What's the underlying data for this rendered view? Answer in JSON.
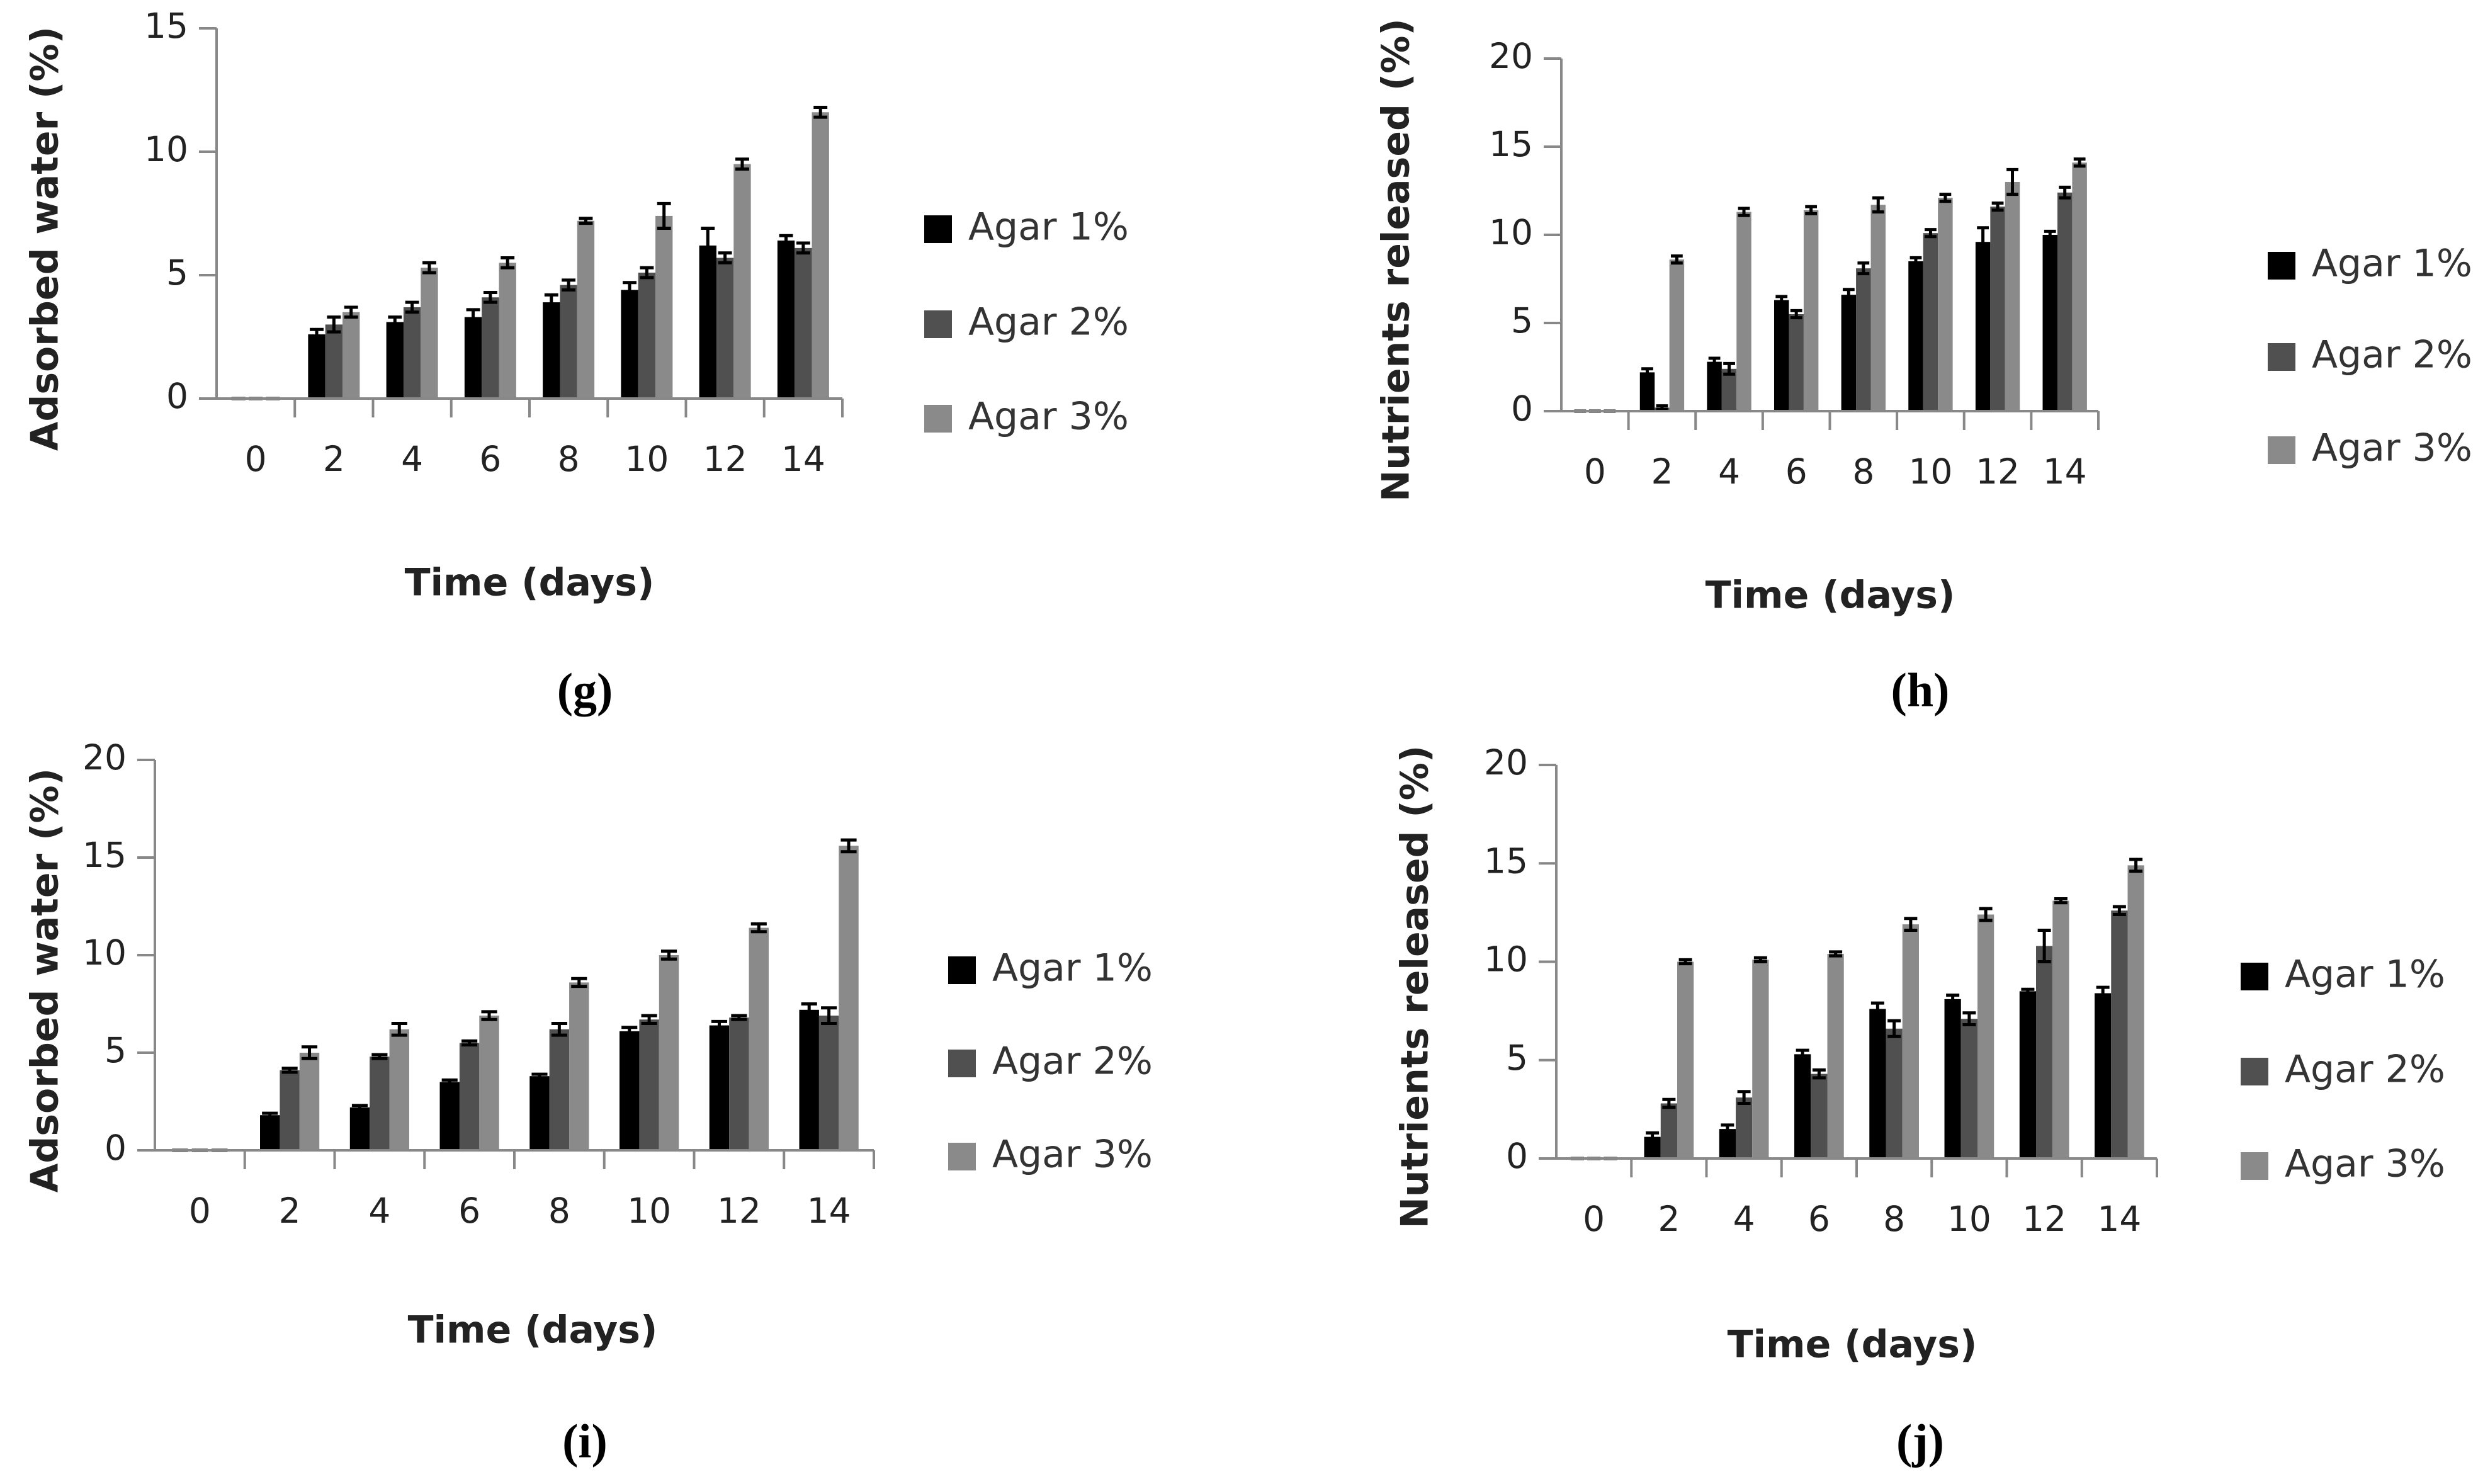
{
  "chart_data": [
    {
      "type": "bar",
      "label": "(g)",
      "x_label": "Time (days)",
      "y_label": "Adsorbed water (%)",
      "categories": [
        "0",
        "2",
        "4",
        "6",
        "8",
        "10",
        "12",
        "14"
      ],
      "ylim": [
        0,
        15
      ],
      "yticks": [
        0,
        5,
        10,
        15
      ],
      "series": [
        {
          "name": "Agar 1%",
          "color": "#000000",
          "values": [
            0,
            2.6,
            3.1,
            3.3,
            3.9,
            4.4,
            6.2,
            6.4
          ],
          "errors": [
            0,
            0.2,
            0.2,
            0.3,
            0.3,
            0.3,
            0.7,
            0.2
          ]
        },
        {
          "name": "Agar 2%",
          "color": "#505050",
          "values": [
            0,
            3.0,
            3.7,
            4.1,
            4.6,
            5.1,
            5.7,
            6.1
          ],
          "errors": [
            0,
            0.3,
            0.2,
            0.2,
            0.2,
            0.2,
            0.2,
            0.2
          ]
        },
        {
          "name": "Agar 3%",
          "color": "#8a8a8a",
          "values": [
            0,
            3.5,
            5.3,
            5.5,
            7.2,
            7.4,
            9.5,
            11.6
          ],
          "errors": [
            0,
            0.2,
            0.2,
            0.2,
            0.1,
            0.5,
            0.2,
            0.2
          ]
        }
      ]
    },
    {
      "type": "bar",
      "label": "(h)",
      "x_label": "Time (days)",
      "y_label": "Nutrients released (%)",
      "categories": [
        "0",
        "2",
        "4",
        "6",
        "8",
        "10",
        "12",
        "14"
      ],
      "ylim": [
        0,
        20
      ],
      "yticks": [
        0,
        5,
        10,
        15,
        20
      ],
      "series": [
        {
          "name": "Agar 1%",
          "color": "#000000",
          "values": [
            0,
            2.2,
            2.8,
            6.3,
            6.6,
            8.5,
            9.6,
            10.0
          ],
          "errors": [
            0,
            0.2,
            0.2,
            0.2,
            0.3,
            0.2,
            0.8,
            0.2
          ]
        },
        {
          "name": "Agar 2%",
          "color": "#505050",
          "values": [
            0,
            0.2,
            2.4,
            5.5,
            8.1,
            10.1,
            11.6,
            12.4
          ],
          "errors": [
            0,
            0.1,
            0.3,
            0.2,
            0.3,
            0.2,
            0.2,
            0.3
          ]
        },
        {
          "name": "Agar 3%",
          "color": "#8a8a8a",
          "values": [
            0,
            8.6,
            11.3,
            11.4,
            11.7,
            12.1,
            13.0,
            14.1
          ],
          "errors": [
            0,
            0.2,
            0.2,
            0.2,
            0.4,
            0.2,
            0.7,
            0.2
          ]
        }
      ]
    },
    {
      "type": "bar",
      "label": "(i)",
      "x_label": "Time (days)",
      "y_label": "Adsorbed water (%)",
      "categories": [
        "0",
        "2",
        "4",
        "6",
        "8",
        "10",
        "12",
        "14"
      ],
      "ylim": [
        0,
        20
      ],
      "yticks": [
        0,
        5,
        10,
        15,
        20
      ],
      "series": [
        {
          "name": "Agar 1%",
          "color": "#000000",
          "values": [
            0,
            1.8,
            2.2,
            3.5,
            3.8,
            6.1,
            6.4,
            7.2
          ],
          "errors": [
            0,
            0.1,
            0.1,
            0.1,
            0.1,
            0.2,
            0.2,
            0.3
          ]
        },
        {
          "name": "Agar 2%",
          "color": "#505050",
          "values": [
            0,
            4.1,
            4.8,
            5.5,
            6.2,
            6.7,
            6.8,
            6.9
          ],
          "errors": [
            0,
            0.1,
            0.1,
            0.1,
            0.3,
            0.2,
            0.1,
            0.4
          ]
        },
        {
          "name": "Agar 3%",
          "color": "#8a8a8a",
          "values": [
            0,
            5.0,
            6.2,
            6.9,
            8.6,
            10.0,
            11.4,
            15.6
          ],
          "errors": [
            0,
            0.3,
            0.3,
            0.2,
            0.2,
            0.2,
            0.2,
            0.3
          ]
        }
      ]
    },
    {
      "type": "bar",
      "label": "(j)",
      "x_label": "Time (days)",
      "y_label": "Nutrients released (%)",
      "categories": [
        "0",
        "2",
        "4",
        "6",
        "8",
        "10",
        "12",
        "14"
      ],
      "ylim": [
        0,
        20
      ],
      "yticks": [
        0,
        5,
        10,
        15,
        20
      ],
      "series": [
        {
          "name": "Agar 1%",
          "color": "#000000",
          "values": [
            0,
            1.1,
            1.5,
            5.3,
            7.6,
            8.1,
            8.5,
            8.4
          ],
          "errors": [
            0,
            0.2,
            0.2,
            0.2,
            0.3,
            0.2,
            0.1,
            0.3
          ]
        },
        {
          "name": "Agar 2%",
          "color": "#505050",
          "values": [
            0,
            2.8,
            3.1,
            4.3,
            6.6,
            7.1,
            10.8,
            12.6
          ],
          "errors": [
            0,
            0.2,
            0.3,
            0.2,
            0.4,
            0.3,
            0.8,
            0.2
          ]
        },
        {
          "name": "Agar 3%",
          "color": "#8a8a8a",
          "values": [
            0,
            10.0,
            10.1,
            10.4,
            11.9,
            12.4,
            13.1,
            14.9
          ],
          "errors": [
            0,
            0.1,
            0.1,
            0.1,
            0.3,
            0.3,
            0.1,
            0.3
          ]
        }
      ]
    }
  ]
}
